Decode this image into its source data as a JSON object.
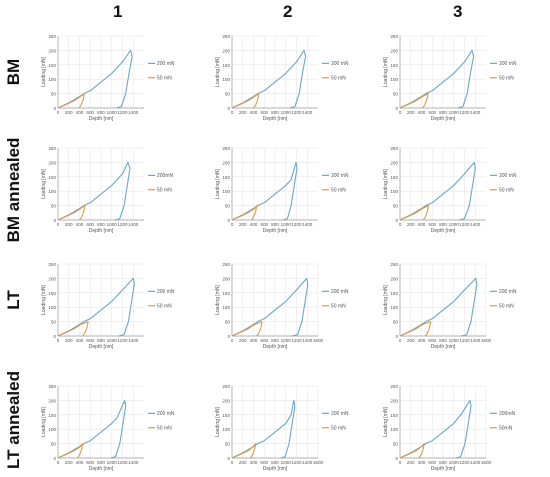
{
  "column_labels": [
    "1",
    "2",
    "3"
  ],
  "row_labels": [
    "BM",
    "BM annealed",
    "LT",
    "LT annealed"
  ],
  "colors": {
    "series_200": "#6aa6c9",
    "series_50": "#d99a4a",
    "grid": "#e6e6e6",
    "axis": "#9a9a9a"
  },
  "chart_data": [
    {
      "type": "line",
      "row": 0,
      "col": 0,
      "xlabel": "Depth [nm]",
      "ylabel": "Loading [mN]",
      "xlim": [
        0,
        1600
      ],
      "ylim": [
        0,
        250
      ],
      "xticks": [
        0,
        200,
        400,
        600,
        800,
        1000,
        1200,
        1400
      ],
      "yticks": [
        0,
        50,
        100,
        150,
        200,
        250
      ],
      "grid": true,
      "legend": "right",
      "series": [
        {
          "name": "200 mN",
          "x": [
            0,
            200,
            400,
            500,
            600,
            800,
            1000,
            1200,
            1350,
            1380,
            1320,
            1260,
            1180,
            1080
          ],
          "y": [
            0,
            18,
            40,
            52,
            60,
            90,
            120,
            160,
            200,
            180,
            120,
            50,
            5,
            0
          ]
        },
        {
          "name": "50 mN",
          "x": [
            0,
            150,
            300,
            420,
            490,
            470,
            430,
            390
          ],
          "y": [
            0,
            12,
            25,
            40,
            50,
            30,
            10,
            0
          ]
        }
      ]
    },
    {
      "type": "line",
      "row": 0,
      "col": 1,
      "xlabel": "Depth [nm]",
      "ylabel": "Loading [mN]",
      "xlim": [
        0,
        1600
      ],
      "ylim": [
        0,
        250
      ],
      "xticks": [
        0,
        200,
        400,
        600,
        800,
        1000,
        1200,
        1400
      ],
      "yticks": [
        0,
        50,
        100,
        150,
        200,
        250
      ],
      "grid": true,
      "legend": "right",
      "series": [
        {
          "name": "200 mN",
          "x": [
            0,
            200,
            400,
            500,
            600,
            800,
            1000,
            1200,
            1340,
            1370,
            1310,
            1250,
            1170,
            1070
          ],
          "y": [
            0,
            18,
            40,
            52,
            60,
            90,
            120,
            160,
            200,
            180,
            120,
            50,
            5,
            0
          ]
        },
        {
          "name": "50 mN",
          "x": [
            0,
            150,
            300,
            420,
            500,
            480,
            440,
            400
          ],
          "y": [
            0,
            12,
            25,
            40,
            50,
            30,
            10,
            0
          ]
        }
      ]
    },
    {
      "type": "line",
      "row": 0,
      "col": 2,
      "xlabel": "Depth [nm]",
      "ylabel": "Loading [mN]",
      "xlim": [
        0,
        1600
      ],
      "ylim": [
        0,
        250
      ],
      "xticks": [
        0,
        200,
        400,
        600,
        800,
        1000,
        1200,
        1400
      ],
      "yticks": [
        0,
        50,
        100,
        150,
        200,
        250
      ],
      "grid": true,
      "legend": "right",
      "series": [
        {
          "name": "200 mN",
          "x": [
            0,
            200,
            400,
            500,
            600,
            800,
            1000,
            1200,
            1340,
            1370,
            1310,
            1250,
            1170,
            1070
          ],
          "y": [
            0,
            18,
            40,
            52,
            60,
            90,
            120,
            160,
            200,
            180,
            120,
            50,
            5,
            0
          ]
        },
        {
          "name": "50 mN",
          "x": [
            0,
            150,
            300,
            420,
            520,
            500,
            460,
            420
          ],
          "y": [
            0,
            12,
            25,
            40,
            50,
            30,
            10,
            0
          ]
        }
      ]
    },
    {
      "type": "line",
      "row": 1,
      "col": 0,
      "xlabel": "Depth [nm]",
      "ylabel": "Loading [mN]",
      "xlim": [
        0,
        1600
      ],
      "ylim": [
        0,
        250
      ],
      "xticks": [
        0,
        200,
        400,
        600,
        800,
        1000,
        1200,
        1400
      ],
      "yticks": [
        0,
        50,
        100,
        150,
        200,
        250
      ],
      "grid": true,
      "legend": "right",
      "series": [
        {
          "name": "200mN",
          "x": [
            0,
            200,
            400,
            500,
            600,
            800,
            1000,
            1200,
            1300,
            1340,
            1290,
            1230,
            1150,
            1060
          ],
          "y": [
            0,
            18,
            40,
            52,
            60,
            90,
            120,
            160,
            200,
            180,
            120,
            50,
            5,
            0
          ]
        },
        {
          "name": "50 mN",
          "x": [
            0,
            150,
            300,
            420,
            500,
            480,
            440,
            400
          ],
          "y": [
            0,
            12,
            25,
            40,
            50,
            30,
            10,
            0
          ]
        }
      ]
    },
    {
      "type": "line",
      "row": 1,
      "col": 1,
      "xlabel": "Depth [nm]",
      "ylabel": "Loading [mN]",
      "xlim": [
        0,
        1600
      ],
      "ylim": [
        0,
        250
      ],
      "xticks": [
        0,
        200,
        400,
        600,
        800,
        1000,
        1200,
        1400
      ],
      "yticks": [
        0,
        50,
        100,
        150,
        200,
        250
      ],
      "grid": true,
      "legend": "right",
      "series": [
        {
          "name": "200 mN",
          "x": [
            0,
            200,
            400,
            500,
            600,
            800,
            1000,
            1100,
            1190,
            1210,
            1160,
            1100,
            1030,
            950
          ],
          "y": [
            0,
            18,
            40,
            52,
            60,
            90,
            120,
            140,
            200,
            180,
            120,
            50,
            5,
            0
          ]
        },
        {
          "name": "50 mN",
          "x": [
            0,
            150,
            300,
            420,
            460,
            440,
            400,
            360
          ],
          "y": [
            0,
            12,
            25,
            40,
            50,
            30,
            10,
            0
          ]
        }
      ]
    },
    {
      "type": "line",
      "row": 1,
      "col": 2,
      "xlabel": "Depth [nm]",
      "ylabel": "Loading [mN]",
      "xlim": [
        0,
        1600
      ],
      "ylim": [
        0,
        250
      ],
      "xticks": [
        0,
        200,
        400,
        600,
        800,
        1000,
        1200,
        1400
      ],
      "yticks": [
        0,
        50,
        100,
        150,
        200,
        250
      ],
      "grid": true,
      "legend": "right",
      "series": [
        {
          "name": "200 mN",
          "x": [
            0,
            200,
            400,
            500,
            600,
            800,
            1000,
            1200,
            1380,
            1400,
            1350,
            1290,
            1200,
            1100
          ],
          "y": [
            0,
            18,
            40,
            52,
            60,
            90,
            120,
            160,
            200,
            180,
            120,
            50,
            5,
            0
          ]
        },
        {
          "name": "50 mN",
          "x": [
            0,
            150,
            300,
            420,
            530,
            510,
            470,
            430
          ],
          "y": [
            0,
            12,
            25,
            40,
            50,
            30,
            10,
            0
          ]
        }
      ]
    },
    {
      "type": "line",
      "row": 2,
      "col": 0,
      "xlabel": "Depth [nm]",
      "ylabel": "Loading [mN]",
      "xlim": [
        0,
        1600
      ],
      "ylim": [
        0,
        250
      ],
      "xticks": [
        0,
        200,
        400,
        600,
        800,
        1000,
        1200,
        1400
      ],
      "yticks": [
        0,
        50,
        100,
        150,
        200,
        250
      ],
      "grid": true,
      "legend": "right",
      "series": [
        {
          "name": "200 mN",
          "x": [
            0,
            200,
            400,
            500,
            600,
            800,
            1000,
            1200,
            1400,
            1420,
            1370,
            1310,
            1230,
            1130
          ],
          "y": [
            0,
            18,
            40,
            52,
            60,
            90,
            120,
            160,
            200,
            180,
            120,
            50,
            5,
            0
          ]
        },
        {
          "name": "50 mN",
          "x": [
            0,
            150,
            300,
            420,
            560,
            540,
            500,
            460
          ],
          "y": [
            0,
            12,
            25,
            40,
            50,
            30,
            10,
            0
          ]
        }
      ]
    },
    {
      "type": "line",
      "row": 2,
      "col": 1,
      "xlabel": "Depth [nm]",
      "ylabel": "Loading [mN]",
      "xlim": [
        0,
        1600
      ],
      "ylim": [
        0,
        250
      ],
      "xticks": [
        0,
        200,
        400,
        600,
        800,
        1000,
        1200,
        1400,
        1600
      ],
      "yticks": [
        0,
        50,
        100,
        150,
        200,
        250
      ],
      "grid": true,
      "legend": "right",
      "series": [
        {
          "name": "200 mN",
          "x": [
            0,
            200,
            400,
            500,
            600,
            800,
            1000,
            1200,
            1390,
            1410,
            1360,
            1300,
            1220,
            1120
          ],
          "y": [
            0,
            18,
            40,
            52,
            60,
            90,
            120,
            160,
            200,
            180,
            120,
            50,
            5,
            0
          ]
        },
        {
          "name": "50 mN",
          "x": [
            0,
            150,
            300,
            420,
            560,
            540,
            500,
            460
          ],
          "y": [
            0,
            12,
            25,
            40,
            50,
            30,
            10,
            0
          ]
        }
      ]
    },
    {
      "type": "line",
      "row": 2,
      "col": 2,
      "xlabel": "Depth [nm]",
      "ylabel": "Loading [mN]",
      "xlim": [
        0,
        1600
      ],
      "ylim": [
        0,
        250
      ],
      "xticks": [
        0,
        200,
        400,
        600,
        800,
        1000,
        1200,
        1400,
        1600
      ],
      "yticks": [
        0,
        50,
        100,
        150,
        200,
        250
      ],
      "grid": true,
      "legend": "right",
      "series": [
        {
          "name": "200 mN",
          "x": [
            0,
            200,
            400,
            500,
            600,
            800,
            1000,
            1200,
            1410,
            1430,
            1380,
            1320,
            1240,
            1140
          ],
          "y": [
            0,
            18,
            40,
            52,
            60,
            90,
            120,
            160,
            200,
            180,
            120,
            50,
            5,
            0
          ]
        },
        {
          "name": "50 mN",
          "x": [
            0,
            150,
            300,
            420,
            570,
            550,
            510,
            470
          ],
          "y": [
            0,
            12,
            25,
            40,
            50,
            30,
            10,
            0
          ]
        }
      ]
    },
    {
      "type": "line",
      "row": 3,
      "col": 0,
      "xlabel": "Depth [nm]",
      "ylabel": "Loading [mN]",
      "xlim": [
        0,
        1600
      ],
      "ylim": [
        0,
        250
      ],
      "xticks": [
        0,
        200,
        400,
        600,
        800,
        1000,
        1200,
        1400
      ],
      "yticks": [
        0,
        50,
        100,
        150,
        200,
        250
      ],
      "grid": true,
      "legend": "right",
      "series": [
        {
          "name": "200 mN",
          "x": [
            0,
            200,
            400,
            500,
            600,
            800,
            1000,
            1100,
            1240,
            1260,
            1210,
            1150,
            1070,
            980
          ],
          "y": [
            0,
            18,
            40,
            52,
            60,
            90,
            120,
            140,
            200,
            180,
            120,
            50,
            5,
            0
          ]
        },
        {
          "name": "50 mN",
          "x": [
            0,
            150,
            300,
            420,
            460,
            440,
            400,
            360
          ],
          "y": [
            0,
            12,
            25,
            40,
            50,
            30,
            10,
            0
          ]
        }
      ]
    },
    {
      "type": "line",
      "row": 3,
      "col": 1,
      "xlabel": "Depth [nm]",
      "ylabel": "Loading [mN]",
      "xlim": [
        0,
        1600
      ],
      "ylim": [
        0,
        250
      ],
      "xticks": [
        0,
        200,
        400,
        600,
        800,
        1000,
        1200,
        1400,
        1600
      ],
      "yticks": [
        0,
        50,
        100,
        150,
        200,
        250
      ],
      "grid": true,
      "legend": "right",
      "series": [
        {
          "name": "200 mN",
          "x": [
            0,
            200,
            400,
            500,
            600,
            800,
            1000,
            1100,
            1150,
            1170,
            1120,
            1060,
            990,
            900
          ],
          "y": [
            0,
            18,
            40,
            52,
            60,
            90,
            120,
            150,
            200,
            180,
            120,
            50,
            5,
            0
          ]
        },
        {
          "name": "50 mN",
          "x": [
            0,
            150,
            300,
            400,
            440,
            420,
            380,
            340
          ],
          "y": [
            0,
            12,
            25,
            40,
            50,
            30,
            10,
            0
          ]
        }
      ]
    },
    {
      "type": "line",
      "row": 3,
      "col": 2,
      "xlabel": "Depth [nm]",
      "ylabel": "Loading [mN]",
      "xlim": [
        0,
        1600
      ],
      "ylim": [
        0,
        250
      ],
      "xticks": [
        0,
        200,
        400,
        600,
        800,
        1000,
        1200,
        1400,
        1600
      ],
      "yticks": [
        0,
        50,
        100,
        150,
        200,
        250
      ],
      "grid": true,
      "legend": "right",
      "series": [
        {
          "name": "200mN",
          "x": [
            0,
            200,
            400,
            500,
            600,
            800,
            1000,
            1150,
            1300,
            1320,
            1270,
            1210,
            1130,
            1040
          ],
          "y": [
            0,
            18,
            40,
            52,
            60,
            90,
            120,
            155,
            200,
            180,
            120,
            50,
            5,
            0
          ]
        },
        {
          "name": "50mN",
          "x": [
            0,
            150,
            300,
            400,
            450,
            430,
            390,
            350
          ],
          "y": [
            0,
            12,
            25,
            40,
            50,
            30,
            10,
            0
          ]
        }
      ]
    }
  ]
}
